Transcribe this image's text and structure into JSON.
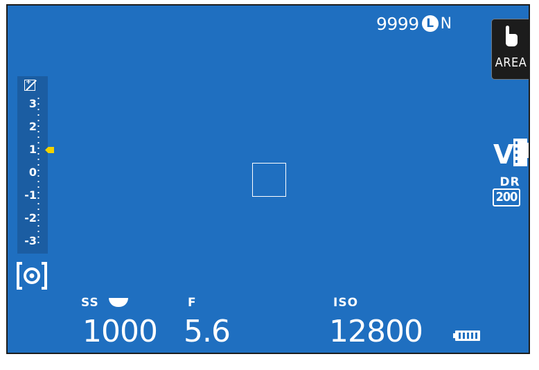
{
  "top_info": {
    "shots_remaining": "9999",
    "image_size": "L",
    "image_quality": "N"
  },
  "touch_mode": {
    "label": "AREA",
    "icon": "hand-pointer-icon"
  },
  "exposure_compensation": {
    "icon": "ev-comp-icon",
    "scale_labels": [
      "3",
      "2",
      "1",
      "0",
      "-1",
      "-2",
      "-3"
    ],
    "current_value": 1,
    "marker_color": "#f2d200"
  },
  "metering": {
    "icon": "multi-metering-icon"
  },
  "film_simulation": {
    "icon": "film-sim-velvia-icon",
    "letter": "V"
  },
  "dynamic_range": {
    "label": "DR",
    "value": "200"
  },
  "exposure": {
    "shutter_label": "SS",
    "shutter_value": "1000",
    "aperture_label": "F",
    "aperture_value": "5.6",
    "iso_label": "ISO",
    "iso_value": "12800"
  },
  "battery": {
    "icon": "battery-full-icon",
    "level": 1.0
  },
  "colors": {
    "background": "#1f6fc0",
    "panel": "#1b5da2",
    "accent": "#f2d200"
  }
}
